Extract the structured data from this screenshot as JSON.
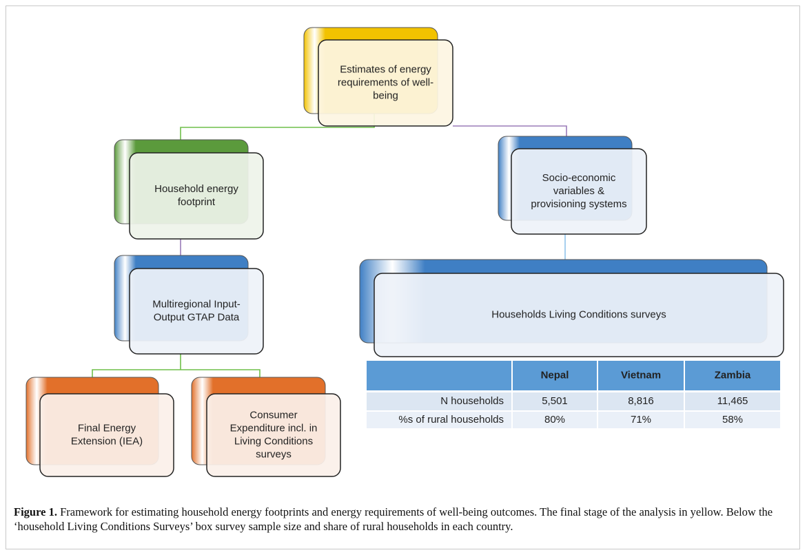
{
  "nodes": [
    {
      "lines": [
        "Estimates of energy",
        "requirements of well-",
        "being"
      ],
      "color": "#f2c200",
      "tint": "#fdf5e2",
      "back": [
        441,
        40,
        194,
        125
      ],
      "front": [
        462,
        58,
        195,
        125
      ]
    },
    {
      "lines": [
        "Household energy",
        "footprint"
      ],
      "color": "#5b9a3c",
      "tint": "#eef3e9",
      "back": [
        166,
        203,
        194,
        122
      ],
      "front": [
        188,
        222,
        194,
        125
      ]
    },
    {
      "lines": [
        "Socio-economic",
        "variables &",
        "provisioning systems"
      ],
      "color": "#3f7fc4",
      "tint": "#eef2f9",
      "back": [
        723,
        198,
        194,
        122
      ],
      "front": [
        742,
        216,
        196,
        124
      ]
    },
    {
      "lines": [
        "Multiregional Input-",
        "Output GTAP Data"
      ],
      "color": "#3f7fc4",
      "tint": "#eef2f9",
      "back": [
        166,
        371,
        194,
        124
      ],
      "front": [
        188,
        390,
        194,
        124
      ]
    },
    {
      "lines": [
        "Households Living Conditions surveys"
      ],
      "color": "#3f7fc4",
      "tint": "#eef2f9",
      "back": [
        522,
        377,
        591,
        121
      ],
      "front": [
        543,
        397,
        594,
        121
      ]
    },
    {
      "lines": [
        "Final Energy",
        "Extension (IEA)"
      ],
      "color": "#e2702a",
      "tint": "#fbf0ea",
      "back": [
        38,
        548,
        192,
        127
      ],
      "front": [
        58,
        572,
        194,
        120
      ]
    },
    {
      "lines": [
        "Consumer",
        "Expenditure incl. in",
        "Living Conditions",
        "surveys"
      ],
      "color": "#e2702a",
      "tint": "#fbf0ea",
      "back": [
        278,
        548,
        194,
        127
      ],
      "front": [
        300,
        572,
        194,
        120
      ]
    }
  ],
  "table": {
    "header": [
      "",
      "Nepal",
      "Vietnam",
      "Zambia"
    ],
    "rows": [
      [
        "N households",
        "5,501",
        "8,816",
        "11,465"
      ],
      [
        "%s of rural households",
        "80%",
        "71%",
        "58%"
      ]
    ]
  },
  "caption": {
    "label": "Figure 1.",
    "text": "Framework for estimating household energy footprints and energy requirements of well-being outcomes. The final stage of the analysis in yellow. Below the ‘household Living Conditions Surveys’ box survey sample size and share of rural households in each country."
  }
}
